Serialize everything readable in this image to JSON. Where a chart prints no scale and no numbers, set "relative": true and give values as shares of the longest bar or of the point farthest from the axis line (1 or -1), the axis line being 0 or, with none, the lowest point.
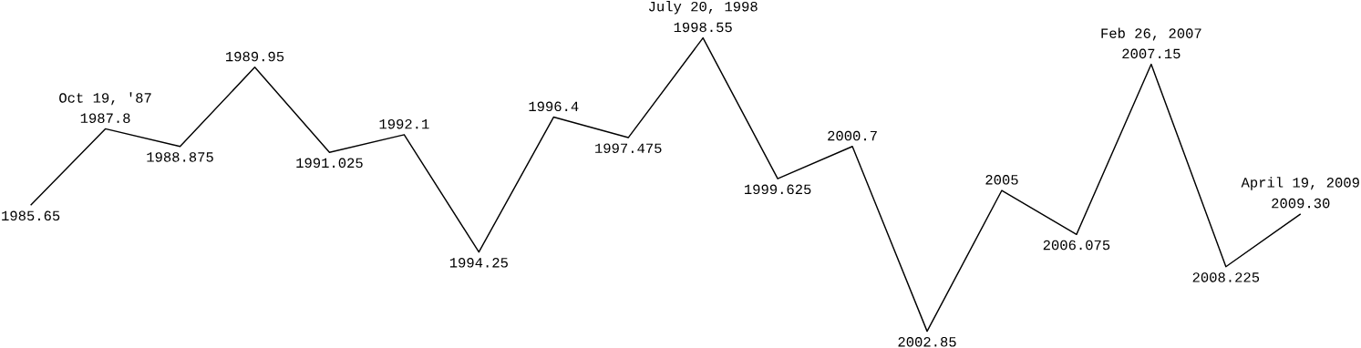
{
  "chart_data": {
    "type": "line",
    "relative": true,
    "color": "#000000",
    "categories": [
      "1985.65",
      "1987.8",
      "1988.875",
      "1989.95",
      "1991.025",
      "1992.1",
      "1994.25",
      "1996.4",
      "1997.475",
      "1998.55",
      "1999.625",
      "2000.7",
      "2002.85",
      "2005",
      "2006.075",
      "2007.15",
      "2008.225",
      "2009.30"
    ],
    "values": [
      0.43,
      0.69,
      0.63,
      0.9,
      0.61,
      0.67,
      0.27,
      0.73,
      0.66,
      1,
      0.52,
      0.63,
      0,
      0.48,
      0.33,
      0.91,
      0.22,
      0.4
    ],
    "annotations": [
      {
        "text": "Oct 19, '87",
        "x": "1987.8",
        "y": 0.69
      },
      {
        "text": "July 20, 1998",
        "x": "1998.55",
        "y": 1
      },
      {
        "text": "Feb 26, 2007",
        "x": "2007.15",
        "y": 0.91
      },
      {
        "text": "April 19, 2009",
        "x": "2009.30",
        "y": 0.4
      }
    ]
  }
}
